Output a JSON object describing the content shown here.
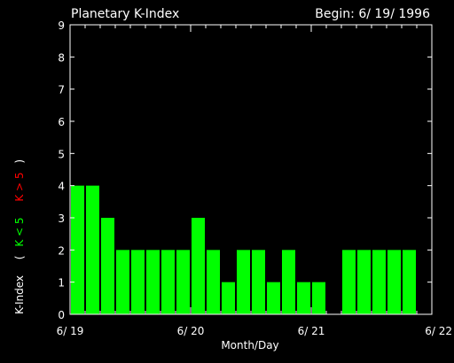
{
  "chart_data": {
    "type": "bar",
    "title": "Planetary K-Index",
    "subtitle": "Begin: 6/ 19/ 1996",
    "xlabel": "Month/Day",
    "ylabel": {
      "prefix": "K-Index",
      "open_paren": "(",
      "green_part": "K < 5",
      "red_part": "K > 5",
      "close_paren": ")"
    },
    "ylim": [
      0,
      9
    ],
    "yticks": [
      "0",
      "1",
      "2",
      "3",
      "4",
      "5",
      "6",
      "7",
      "8",
      "9"
    ],
    "xticks": [
      "6/ 19",
      "6/ 20",
      "6/ 21",
      "6/ 22"
    ],
    "interval_hours": 3,
    "values": [
      4,
      4,
      3,
      2,
      2,
      2,
      2,
      2,
      3,
      2,
      1,
      2,
      2,
      1,
      2,
      1,
      1,
      0,
      2,
      2,
      2,
      2,
      2,
      0
    ],
    "colors": {
      "normal": "#00ff00",
      "storm": "#ff0000",
      "axis": "#ffffff",
      "background": "#000000"
    }
  }
}
